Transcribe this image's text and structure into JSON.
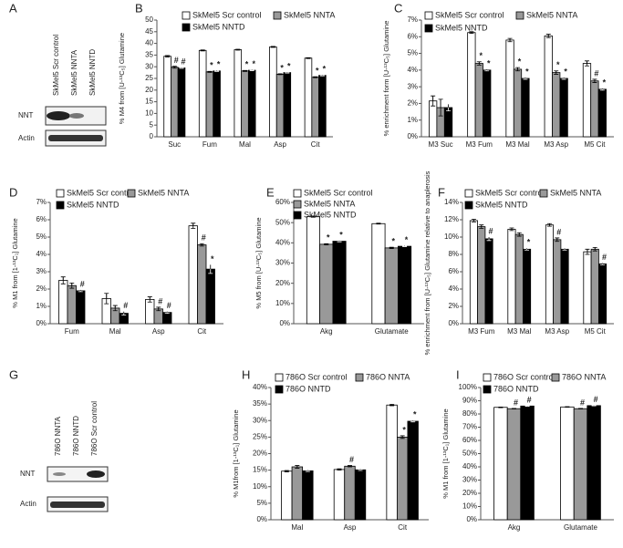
{
  "blots": [
    {
      "panel": "A",
      "lanes": [
        "SkMel5 Scr control",
        "SkMel5 NNTA",
        "SkMel5 NNTD"
      ],
      "rows": [
        "NNT",
        "Actin"
      ]
    },
    {
      "panel": "G",
      "lanes": [
        "786O NNTA",
        "786O NNTD",
        "786O Scr control"
      ],
      "rows": [
        "NNT",
        "Actin"
      ]
    }
  ],
  "chart_data": [
    {
      "type": "bar",
      "panel": "B",
      "y_label": "% M4 from [U-¹³C₅] Glutamine",
      "categories": [
        "Suc",
        "Fum",
        "Mal",
        "Asp",
        "Cit"
      ],
      "ylim": [
        0,
        50
      ],
      "yticks": [
        0,
        5,
        10,
        15,
        20,
        25,
        30,
        35,
        40,
        45,
        50
      ],
      "series": [
        {
          "name": "SkMel5 Scr control",
          "color": "#ffffff",
          "values": [
            34.5,
            37,
            37.3,
            38.5,
            33.7
          ],
          "errors": [
            0.3,
            0.2,
            0.2,
            0.2,
            0.2
          ],
          "annotations": [
            null,
            null,
            null,
            null,
            null
          ]
        },
        {
          "name": "SkMel5 NNTA",
          "color": "#999999",
          "values": [
            29.8,
            27.8,
            28.2,
            26.8,
            25.5
          ],
          "errors": [
            0.4,
            0.2,
            0.2,
            0.2,
            0.2
          ],
          "annotations": [
            "#",
            "*",
            "*",
            "*",
            "*"
          ]
        },
        {
          "name": "SkMel5 NNTD",
          "color": "#000000",
          "values": [
            29.5,
            28.2,
            28.5,
            27.5,
            26.3
          ],
          "errors": [
            0.2,
            0.2,
            0.2,
            0.2,
            0.2
          ],
          "annotations": [
            "#",
            "*",
            "*",
            "*",
            "*"
          ]
        }
      ]
    },
    {
      "type": "bar",
      "panel": "C",
      "y_label": "% enrichment form [U-¹³C₅] Glutamine",
      "categories": [
        "M3 Suc",
        "M3 Fum",
        "M3 Mal",
        "M3 Asp",
        "M5 Cit"
      ],
      "ylim": [
        0,
        7
      ],
      "yticks": [
        {
          "value": 0,
          "label": "0%"
        },
        {
          "value": 1,
          "label": "1%"
        },
        {
          "value": 2,
          "label": "2%"
        },
        {
          "value": 3,
          "label": "3%"
        },
        {
          "value": 4,
          "label": "4%"
        },
        {
          "value": 5,
          "label": "5%"
        },
        {
          "value": 6,
          "label": "6%"
        },
        {
          "value": 7,
          "label": "7%"
        }
      ],
      "series": [
        {
          "name": "SkMel5 Scr control",
          "color": "#ffffff",
          "values": [
            2.15,
            6.25,
            5.8,
            6.05,
            4.4
          ],
          "errors": [
            0.3,
            0.05,
            0.1,
            0.1,
            0.15
          ],
          "annotations": [
            null,
            null,
            null,
            null,
            null
          ]
        },
        {
          "name": "SkMel5 NNTA",
          "color": "#999999",
          "values": [
            1.75,
            4.4,
            4.05,
            3.85,
            3.35
          ],
          "errors": [
            0.5,
            0.1,
            0.1,
            0.1,
            0.1
          ],
          "annotations": [
            null,
            "*",
            "*",
            "*",
            "#"
          ]
        },
        {
          "name": "SkMel5 NNTD",
          "color": "#000000",
          "values": [
            1.75,
            4.0,
            3.5,
            3.5,
            2.85
          ],
          "errors": [
            0.2,
            0.05,
            0.05,
            0.05,
            0.05
          ],
          "annotations": [
            null,
            "*",
            "*",
            "*",
            "*"
          ]
        }
      ]
    },
    {
      "type": "bar",
      "panel": "D",
      "y_label": "% M1 from [1-¹³C₁] Glutamine",
      "categories": [
        "Fum",
        "Mal",
        "Asp",
        "Cit"
      ],
      "ylim": [
        0,
        7
      ],
      "yticks": [
        {
          "value": 0,
          "label": "0%"
        },
        {
          "value": 1,
          "label": "1%"
        },
        {
          "value": 2,
          "label": "2%"
        },
        {
          "value": 3,
          "label": "3%"
        },
        {
          "value": 4,
          "label": "4%"
        },
        {
          "value": 5,
          "label": "5%"
        },
        {
          "value": 6,
          "label": "6%"
        },
        {
          "value": 7,
          "label": "7%"
        }
      ],
      "series": [
        {
          "name": "SkMel5 Scr control",
          "color": "#ffffff",
          "values": [
            2.5,
            1.45,
            1.4,
            5.65
          ],
          "errors": [
            0.2,
            0.3,
            0.15,
            0.15
          ],
          "annotations": [
            null,
            null,
            null,
            null
          ]
        },
        {
          "name": "SkMel5 NNTA",
          "color": "#999999",
          "values": [
            2.2,
            0.9,
            0.85,
            4.55
          ],
          "errors": [
            0.15,
            0.15,
            0.1,
            0.07
          ],
          "annotations": [
            null,
            null,
            "#",
            "#"
          ]
        },
        {
          "name": "SkMel5 NNTD",
          "color": "#000000",
          "values": [
            1.9,
            0.6,
            0.65,
            3.15
          ],
          "errors": [
            0.05,
            0.1,
            0.05,
            0.25
          ],
          "annotations": [
            "#",
            "#",
            "#",
            "*"
          ]
        }
      ]
    },
    {
      "type": "bar",
      "panel": "E",
      "y_label": "% M5 from [U-¹³C₅] Glutamine",
      "categories": [
        "Akg",
        "Glutamate"
      ],
      "ylim": [
        0,
        60
      ],
      "yticks": [
        {
          "value": 0,
          "label": "0%"
        },
        {
          "value": 10,
          "label": "10%"
        },
        {
          "value": 20,
          "label": "20%"
        },
        {
          "value": 30,
          "label": "30%"
        },
        {
          "value": 40,
          "label": "40%"
        },
        {
          "value": 50,
          "label": "50%"
        },
        {
          "value": 60,
          "label": "60%"
        }
      ],
      "series": [
        {
          "name": "SkMel5 Scr control",
          "color": "#ffffff",
          "values": [
            53,
            49.5
          ],
          "errors": [
            0.3,
            0.2
          ],
          "annotations": [
            null,
            null
          ]
        },
        {
          "name": "SkMel5 NNTA",
          "color": "#999999",
          "values": [
            39.3,
            37.5
          ],
          "errors": [
            0.3,
            0.3
          ],
          "annotations": [
            "*",
            "*"
          ]
        },
        {
          "name": "SkMel5 NNTD",
          "color": "#000000",
          "values": [
            40.8,
            38.3
          ],
          "errors": [
            0.3,
            0.2
          ],
          "annotations": [
            "*",
            "*"
          ]
        }
      ]
    },
    {
      "type": "bar",
      "panel": "F",
      "y_label": "% enrichment from [U-¹³C₅] Glutamine relative to anaplerosis",
      "categories": [
        "M3 Fum",
        "M3 Mal",
        "M3 Asp",
        "M5 Cit"
      ],
      "ylim": [
        0,
        14
      ],
      "yticks": [
        {
          "value": 0,
          "label": "0%"
        },
        {
          "value": 2,
          "label": "2%"
        },
        {
          "value": 4,
          "label": "4%"
        },
        {
          "value": 6,
          "label": "6%"
        },
        {
          "value": 8,
          "label": "8%"
        },
        {
          "value": 10,
          "label": "10%"
        },
        {
          "value": 12,
          "label": "12%"
        },
        {
          "value": 14,
          "label": "14%"
        }
      ],
      "series": [
        {
          "name": "SkMel5 Scr control",
          "color": "#ffffff",
          "values": [
            11.9,
            10.9,
            11.4,
            8.3
          ],
          "errors": [
            0.15,
            0.15,
            0.15,
            0.3
          ],
          "annotations": [
            null,
            null,
            null,
            null
          ]
        },
        {
          "name": "SkMel5 NNTA",
          "color": "#999999",
          "values": [
            11.2,
            10.3,
            9.7,
            8.6
          ],
          "errors": [
            0.2,
            0.2,
            0.2,
            0.2
          ],
          "annotations": [
            null,
            null,
            "#",
            null
          ]
        },
        {
          "name": "SkMel5 NNTD",
          "color": "#000000",
          "values": [
            9.8,
            8.6,
            8.6,
            6.9
          ],
          "errors": [
            0.2,
            0.1,
            0.1,
            0.1
          ],
          "annotations": [
            "#",
            "*",
            null,
            "#"
          ]
        }
      ]
    },
    {
      "type": "bar",
      "panel": "H",
      "y_label": "% M1from [1-¹³C₁] Glutamine",
      "categories": [
        "Mal",
        "Asp",
        "Cit"
      ],
      "ylim": [
        0,
        40
      ],
      "yticks": [
        {
          "value": 0,
          "label": "0%"
        },
        {
          "value": 5,
          "label": "5%"
        },
        {
          "value": 10,
          "label": "10%"
        },
        {
          "value": 15,
          "label": "15%"
        },
        {
          "value": 20,
          "label": "20%"
        },
        {
          "value": 25,
          "label": "25%"
        },
        {
          "value": 30,
          "label": "30%"
        },
        {
          "value": 35,
          "label": "35%"
        },
        {
          "value": 40,
          "label": "40%"
        }
      ],
      "series": [
        {
          "name": "786O Scr control",
          "color": "#ffffff",
          "values": [
            14.7,
            15.2,
            34.7
          ],
          "errors": [
            0.2,
            0.2,
            0.2
          ],
          "annotations": [
            null,
            null,
            null
          ]
        },
        {
          "name": "786O NNTA",
          "color": "#999999",
          "values": [
            16.0,
            16.2,
            25.0
          ],
          "errors": [
            0.4,
            0.2,
            0.4
          ],
          "annotations": [
            null,
            "#",
            "*"
          ]
        },
        {
          "name": "786O NNTD",
          "color": "#000000",
          "values": [
            14.8,
            15.1,
            29.8
          ],
          "errors": [
            0.2,
            0.2,
            0.2
          ],
          "annotations": [
            null,
            null,
            "*"
          ]
        }
      ]
    },
    {
      "type": "bar",
      "panel": "I",
      "y_label": "% M1 from [1-¹³C₁] Glutamine",
      "categories": [
        "Akg",
        "Glutamate"
      ],
      "ylim": [
        0,
        100
      ],
      "yticks": [
        {
          "value": 0,
          "label": "0%"
        },
        {
          "value": 10,
          "label": "10%"
        },
        {
          "value": 20,
          "label": "20%"
        },
        {
          "value": 30,
          "label": "30%"
        },
        {
          "value": 40,
          "label": "40%"
        },
        {
          "value": 50,
          "label": "50%"
        },
        {
          "value": 60,
          "label": "60%"
        },
        {
          "value": 70,
          "label": "70%"
        },
        {
          "value": 80,
          "label": "80%"
        },
        {
          "value": 90,
          "label": "90%"
        },
        {
          "value": 100,
          "label": "100%"
        }
      ],
      "series": [
        {
          "name": "786O Scr control",
          "color": "#ffffff",
          "values": [
            85,
            85.3
          ],
          "errors": [
            0.2,
            0.2
          ],
          "annotations": [
            null,
            null
          ]
        },
        {
          "name": "786O NNTA",
          "color": "#999999",
          "values": [
            84,
            84
          ],
          "errors": [
            0.2,
            0.2
          ],
          "annotations": [
            "#",
            "#"
          ]
        },
        {
          "name": "786O NNTD",
          "color": "#000000",
          "values": [
            86,
            86.3
          ],
          "errors": [
            0.2,
            0.2
          ],
          "annotations": [
            "#",
            "#"
          ]
        }
      ]
    }
  ]
}
